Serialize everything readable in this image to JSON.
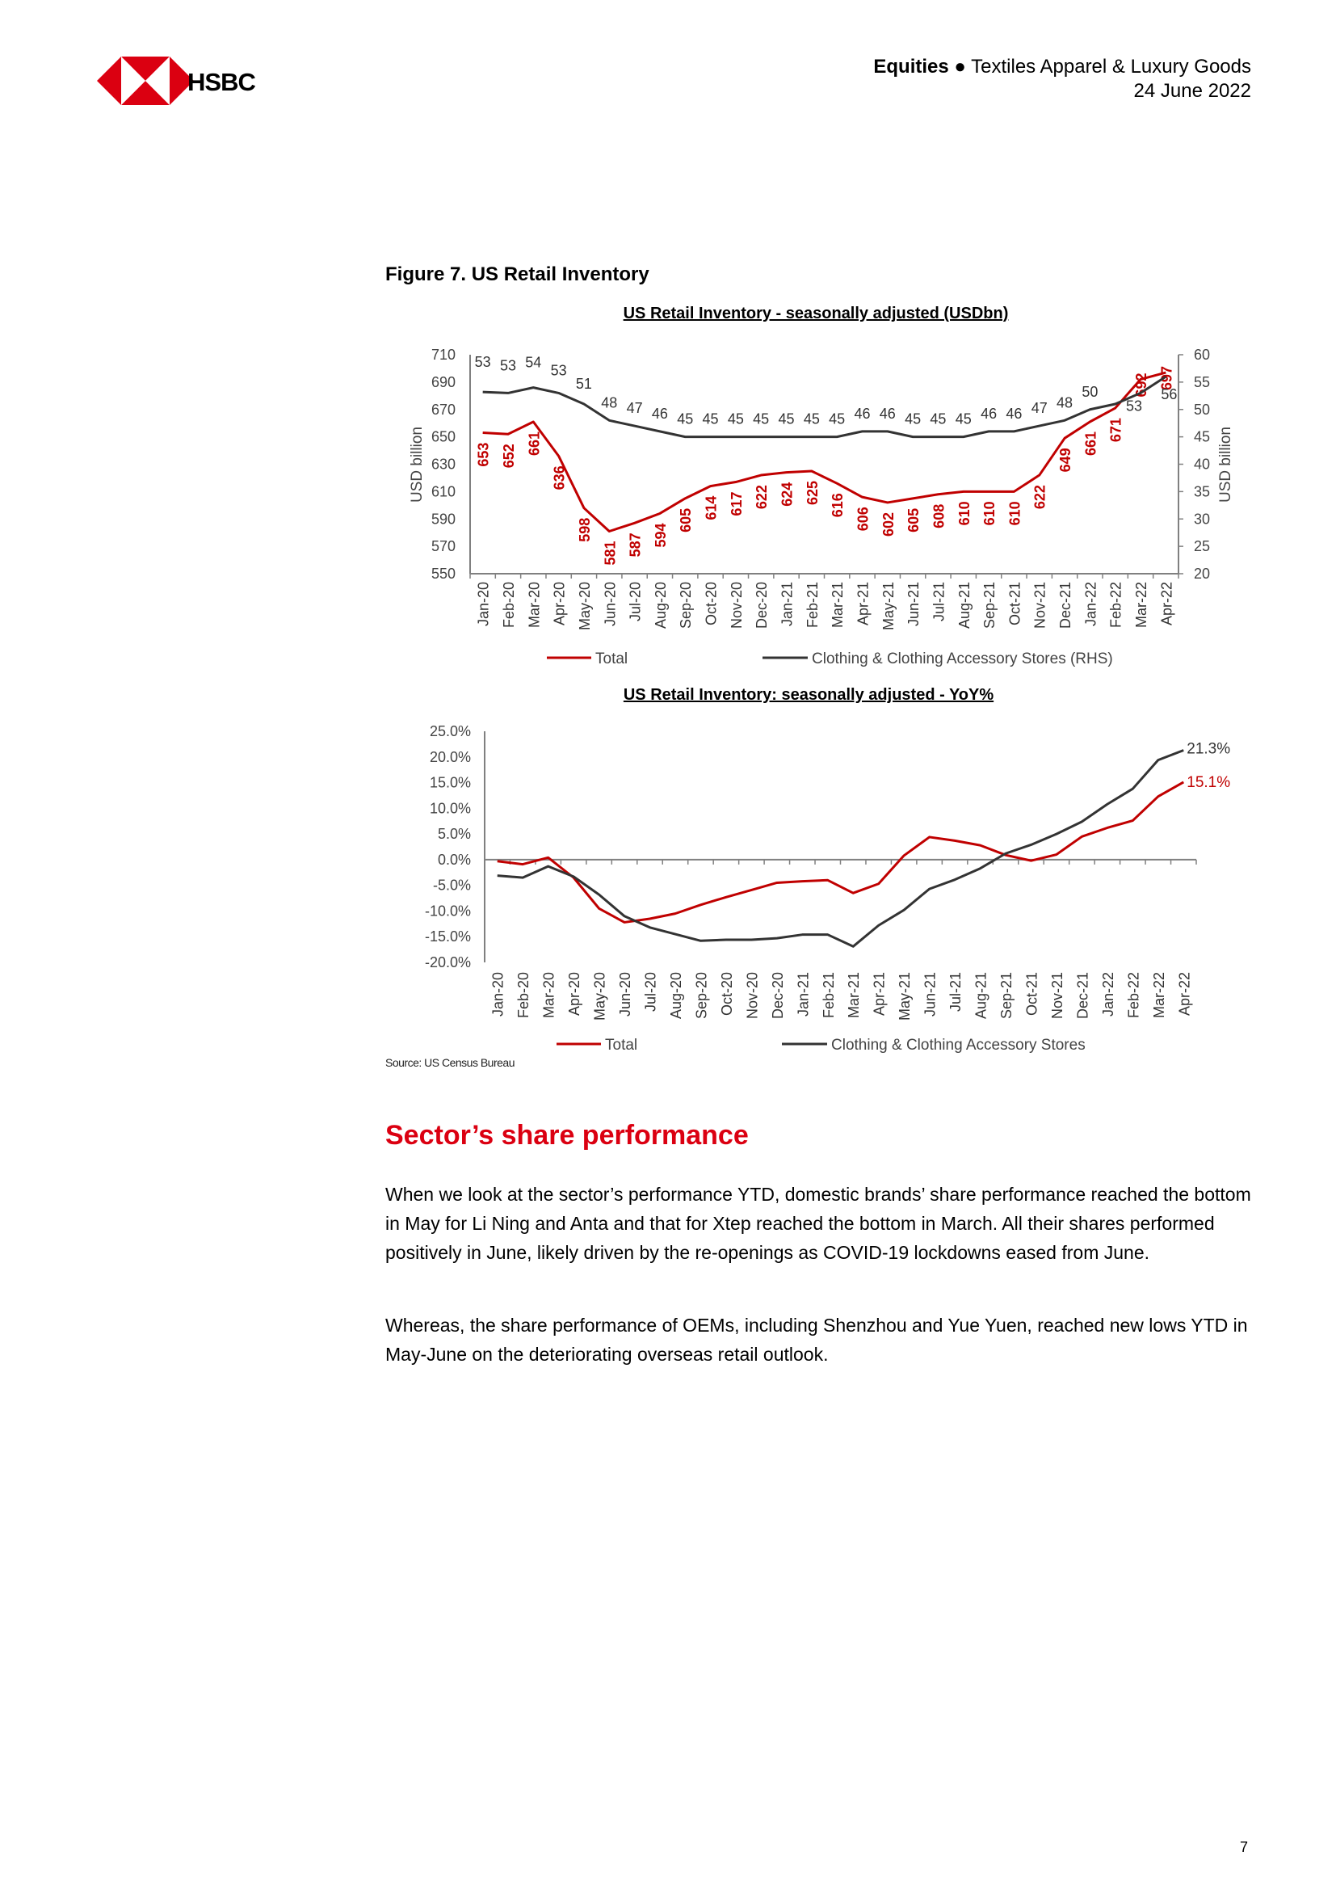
{
  "header": {
    "brand": "HSBC",
    "section": "Equities",
    "bullet": "●",
    "sector": "Textiles Apparel & Luxury Goods",
    "date": "24 June 2022"
  },
  "figure": {
    "title": "Figure 7. US Retail Inventory",
    "source": "Source: US Census Bureau"
  },
  "colors": {
    "brand_red": "#db0011",
    "total": "#c00000",
    "clothing": "#333333",
    "axis": "#808080"
  },
  "chart_data": [
    {
      "type": "line",
      "title": "US Retail Inventory - seasonally adjusted (USDbn)",
      "ylabel": "USD billion",
      "y2label": "USD billion",
      "ylim": [
        550,
        710
      ],
      "yticks": [
        550,
        570,
        590,
        610,
        630,
        650,
        670,
        690,
        710
      ],
      "y2lim": [
        20,
        60
      ],
      "y2ticks": [
        20,
        25,
        30,
        35,
        40,
        45,
        50,
        55,
        60
      ],
      "grid": false,
      "legend": "bottom",
      "categories": [
        "Jan-20",
        "Feb-20",
        "Mar-20",
        "Apr-20",
        "May-20",
        "Jun-20",
        "Jul-20",
        "Aug-20",
        "Sep-20",
        "Oct-20",
        "Nov-20",
        "Dec-20",
        "Jan-21",
        "Feb-21",
        "Mar-21",
        "Apr-21",
        "May-21",
        "Jun-21",
        "Jul-21",
        "Aug-21",
        "Sep-21",
        "Oct-21",
        "Nov-21",
        "Dec-21",
        "Jan-22",
        "Feb-22",
        "Mar-22",
        "Apr-22"
      ],
      "series": [
        {
          "name": "Total",
          "axis": "left",
          "color": "#c00000",
          "values": [
            653,
            652,
            661,
            636,
            598,
            581,
            587,
            594,
            605,
            614,
            617,
            622,
            624,
            625,
            616,
            606,
            602,
            605,
            608,
            610,
            610,
            610,
            622,
            649,
            661,
            671,
            692,
            697
          ],
          "labels": [
            "653",
            "652",
            "661",
            "636",
            "598",
            "581",
            "587",
            "594",
            "605",
            "614",
            "617",
            "622",
            "624",
            "625",
            "616",
            "606",
            "602",
            "605",
            "608",
            "610",
            "610",
            "610",
            "622",
            "649",
            "661",
            "671",
            "692",
            "697"
          ]
        },
        {
          "name": "Clothing & Clothing Accessory Stores (RHS)",
          "axis": "right",
          "color": "#333333",
          "values": [
            53.2,
            53,
            54,
            53,
            51,
            48,
            47,
            46,
            45,
            45,
            45,
            45,
            45,
            45,
            45,
            46,
            46,
            45,
            45,
            45,
            46,
            46,
            47,
            48,
            50,
            51,
            53,
            56
          ],
          "labels": [
            "53",
            "53",
            "54",
            "53",
            "51",
            "48",
            "47",
            "46",
            "45",
            "45",
            "45",
            "45",
            "45",
            "45",
            "45",
            "46",
            "46",
            "45",
            "45",
            "45",
            "46",
            "46",
            "47",
            "48",
            "50",
            "",
            "53",
            "56"
          ]
        }
      ]
    },
    {
      "type": "line",
      "title": "US Retail Inventory: seasonally adjusted  - YoY%",
      "ylim": [
        -20,
        25
      ],
      "yticks": [
        "-20.0%",
        "-15.0%",
        "-10.0%",
        "-5.0%",
        "0.0%",
        "5.0%",
        "10.0%",
        "15.0%",
        "20.0%",
        "25.0%"
      ],
      "grid": false,
      "legend": "bottom",
      "categories": [
        "Jan-20",
        "Feb-20",
        "Mar-20",
        "Apr-20",
        "May-20",
        "Jun-20",
        "Jul-20",
        "Aug-20",
        "Sep-20",
        "Oct-20",
        "Nov-20",
        "Dec-20",
        "Jan-21",
        "Feb-21",
        "Mar-21",
        "Apr-21",
        "May-21",
        "Jun-21",
        "Jul-21",
        "Aug-21",
        "Sep-21",
        "Oct-21",
        "Nov-21",
        "Dec-21",
        "Jan-22",
        "Feb-22",
        "Mar-22",
        "Apr-22"
      ],
      "series": [
        {
          "name": "Total",
          "color": "#c00000",
          "end_label": "15.1%",
          "values": [
            -0.3,
            -0.9,
            0.4,
            -3.5,
            -9.5,
            -12.2,
            -11.5,
            -10.5,
            -8.8,
            -7.3,
            -5.9,
            -4.5,
            -4.2,
            -4.0,
            -6.5,
            -4.7,
            0.8,
            4.4,
            3.7,
            2.8,
            0.9,
            -0.2,
            1.0,
            4.5,
            6.2,
            7.6,
            12.3,
            15.1
          ]
        },
        {
          "name": "Clothing & Clothing Accessory Stores",
          "color": "#333333",
          "end_label": "21.3%",
          "values": [
            -3.1,
            -3.5,
            -1.3,
            -3.3,
            -6.8,
            -11.0,
            -13.2,
            -14.5,
            -15.8,
            -15.6,
            -15.6,
            -15.3,
            -14.6,
            -14.6,
            -16.9,
            -12.8,
            -9.8,
            -5.7,
            -3.9,
            -1.7,
            1.2,
            2.9,
            5.0,
            7.4,
            10.8,
            13.8,
            19.4,
            21.3
          ]
        }
      ]
    }
  ],
  "section": {
    "heading": "Sector’s share performance",
    "paragraphs": [
      "When we look at the sector’s performance YTD, domestic brands’ share performance reached the bottom in May for Li Ning and Anta and that for Xtep reached the bottom in March. All their shares performed positively in June, likely driven by the re-openings as COVID-19 lockdowns eased from June.",
      "Whereas, the share performance of OEMs, including Shenzhou and Yue Yuen, reached new lows YTD in May-June on the deteriorating overseas retail outlook."
    ]
  },
  "page_number": "7"
}
